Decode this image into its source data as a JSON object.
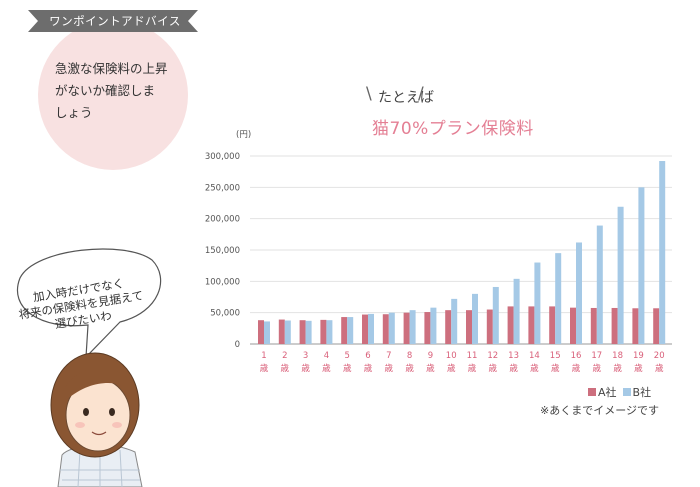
{
  "banner": {
    "text": "ワンポイントアドバイス"
  },
  "advice": {
    "lines": [
      "急激な保険料の上昇",
      "がないか確認しま",
      "しょう"
    ]
  },
  "example": {
    "label": "たとえば"
  },
  "plan": {
    "title": "猫70%プラン保険料"
  },
  "speech": {
    "lines": [
      "加入時だけでなく",
      "将来の保険料を見据えて",
      "選びたいわ"
    ]
  },
  "note": "※あくまでイメージです",
  "colors": {
    "a": "#cd6f7e",
    "b": "#a5c9e6",
    "accent": "#e47f94",
    "circle": "#f8e1e1"
  },
  "chart_data": {
    "type": "bar",
    "unit_label": "(円)",
    "categories": [
      "1 歳",
      "2 歳",
      "3 歳",
      "4 歳",
      "5 歳",
      "6 歳",
      "7 歳",
      "8 歳",
      "9 歳",
      "10 歳",
      "11 歳",
      "12 歳",
      "13 歳",
      "14 歳",
      "15 歳",
      "16 歳",
      "17 歳",
      "18 歳",
      "19 歳",
      "20 歳"
    ],
    "series": [
      {
        "name": "A社",
        "values": [
          38000,
          39000,
          38000,
          38500,
          43000,
          47000,
          47500,
          50000,
          51000,
          54000,
          54000,
          55000,
          60000,
          60000,
          60000,
          58000,
          57500,
          57500,
          57000,
          57000
        ]
      },
      {
        "name": "B社",
        "values": [
          36000,
          37500,
          37000,
          38000,
          43000,
          48000,
          50000,
          54000,
          58000,
          72000,
          80000,
          91000,
          104000,
          130000,
          145000,
          162000,
          189000,
          219000,
          250000,
          292000
        ]
      }
    ],
    "ylim": [
      0,
      300000
    ],
    "yticks": [
      "0",
      "50,000",
      "100,000",
      "150,000",
      "200,000",
      "250,000",
      "300,000"
    ],
    "grid": true,
    "legend": "bottom-right"
  }
}
